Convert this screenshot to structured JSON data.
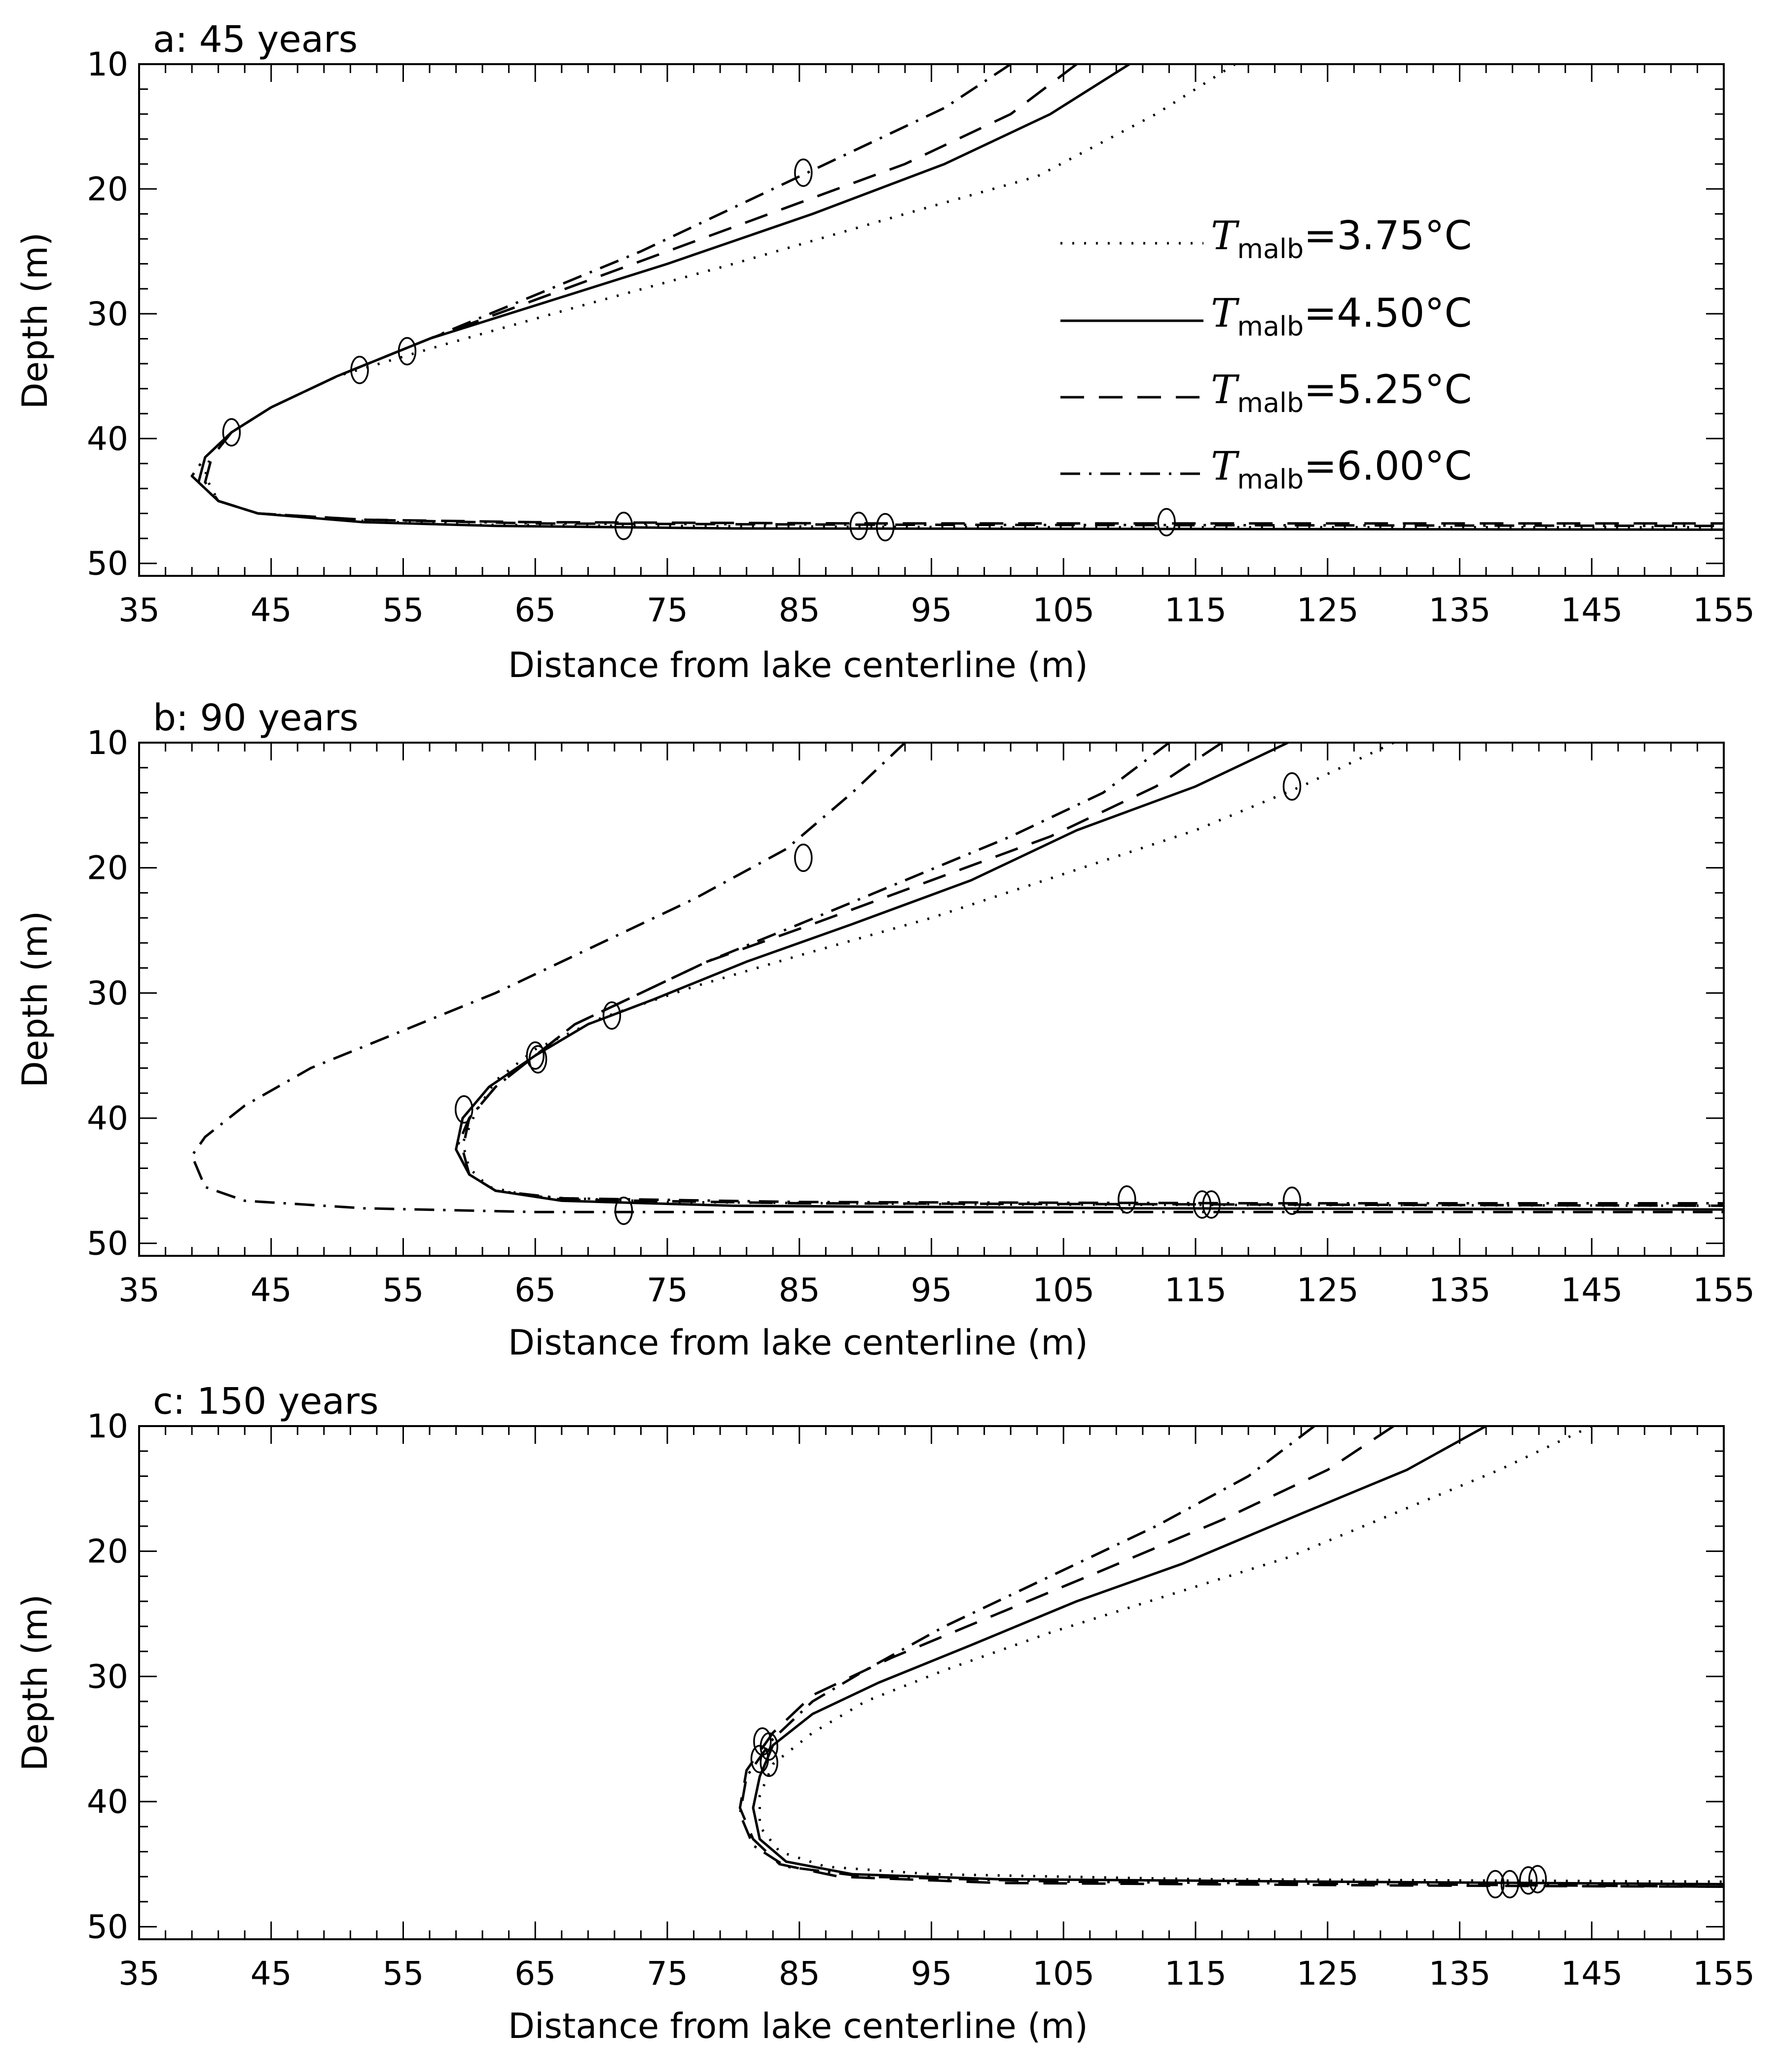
{
  "chart_data": [
    {
      "type": "line",
      "title": "a: 45 years",
      "xlabel": "Distance from lake centerline (m)",
      "ylabel": "Depth (m)",
      "xlim": [
        35,
        155
      ],
      "ylim": [
        51,
        10
      ],
      "xticks": [
        "35",
        "45",
        "55",
        "65",
        "75",
        "85",
        "95",
        "105",
        "115",
        "125",
        "135",
        "145",
        "155"
      ],
      "yticks": [
        "10",
        "20",
        "30",
        "40",
        "50"
      ],
      "legend": {
        "placement": "upper-right",
        "entries": [
          {
            "symbol": "T",
            "sub": "malb",
            "value": "=3.75°C"
          },
          {
            "symbol": "T",
            "sub": "malb",
            "value": "=4.50°C"
          },
          {
            "symbol": "T",
            "sub": "malb",
            "value": "=5.25°C"
          },
          {
            "symbol": "T",
            "sub": "malb",
            "value": "=6.00°C"
          }
        ]
      },
      "series": [
        {
          "style": "dotted",
          "points": [
            [
              118,
              10
            ],
            [
              112,
              14
            ],
            [
              103,
              19
            ],
            [
              93,
              22
            ],
            [
              80,
              26
            ],
            [
              68,
              29.5
            ],
            [
              58,
              32.5
            ],
            [
              50,
              35
            ],
            [
              45,
              37.5
            ],
            [
              42,
              39.5
            ],
            [
              40.5,
              41
            ],
            [
              40,
              43
            ],
            [
              41,
              45
            ],
            [
              44,
              46
            ],
            [
              52,
              46.6
            ],
            [
              60,
              46.9
            ],
            [
              75,
              47
            ],
            [
              100,
              47.1
            ],
            [
              155,
              47.1
            ]
          ]
        },
        {
          "style": "solid",
          "points": [
            [
              110,
              10
            ],
            [
              104,
              14
            ],
            [
              96,
              18
            ],
            [
              86,
              22
            ],
            [
              75,
              26
            ],
            [
              66,
              29
            ],
            [
              57,
              32
            ],
            [
              50,
              35
            ],
            [
              45,
              37.5
            ],
            [
              42,
              39.5
            ],
            [
              40,
              41.5
            ],
            [
              39.5,
              43.5
            ],
            [
              41,
              45
            ],
            [
              44,
              46
            ],
            [
              52,
              46.7
            ],
            [
              62,
              47
            ],
            [
              80,
              47.2
            ],
            [
              155,
              47.3
            ]
          ]
        },
        {
          "style": "dashed",
          "points": [
            [
              106,
              10
            ],
            [
              101,
              14
            ],
            [
              93,
              18
            ],
            [
              84,
              21.5
            ],
            [
              75,
              25
            ],
            [
              66,
              28.5
            ],
            [
              57,
              32
            ],
            [
              50,
              35
            ],
            [
              45,
              37.5
            ],
            [
              42,
              39.5
            ],
            [
              40.5,
              41.5
            ],
            [
              40,
              43.5
            ],
            [
              41,
              45
            ],
            [
              44,
              46
            ],
            [
              52,
              46.5
            ],
            [
              65,
              46.7
            ],
            [
              90,
              46.8
            ],
            [
              155,
              46.8
            ]
          ]
        },
        {
          "style": "dashdot",
          "points": [
            [
              101,
              10
            ],
            [
              96,
              13.5
            ],
            [
              89,
              17
            ],
            [
              81,
              21
            ],
            [
              73,
              25
            ],
            [
              65,
              28.5
            ],
            [
              57,
              32
            ],
            [
              50,
              35
            ],
            [
              45,
              37.5
            ],
            [
              42,
              39.5
            ],
            [
              40,
              41.5
            ],
            [
              39,
              43
            ],
            [
              41,
              45
            ],
            [
              44,
              46
            ],
            [
              52,
              46.5
            ],
            [
              65,
              46.8
            ],
            [
              90,
              46.9
            ],
            [
              155,
              47
            ]
          ]
        }
      ],
      "markers": [
        [
          85.3,
          18.7
        ],
        [
          51.7,
          34.5
        ],
        [
          55.3,
          33
        ],
        [
          42,
          39.5
        ],
        [
          71.7,
          47
        ],
        [
          89.5,
          47
        ],
        [
          91.5,
          47.1
        ],
        [
          112.8,
          46.7
        ]
      ]
    },
    {
      "type": "line",
      "title": "b: 90 years",
      "xlabel": "Distance from lake centerline (m)",
      "ylabel": "Depth (m)",
      "xlim": [
        35,
        155
      ],
      "ylim": [
        51,
        10
      ],
      "xticks": [
        "35",
        "45",
        "55",
        "65",
        "75",
        "85",
        "95",
        "105",
        "115",
        "125",
        "135",
        "145",
        "155"
      ],
      "yticks": [
        "10",
        "20",
        "30",
        "40",
        "50"
      ],
      "series": [
        {
          "style": "dotted",
          "points": [
            [
              130,
              10
            ],
            [
              123,
              13.5
            ],
            [
              115,
              17
            ],
            [
              105,
              20.5
            ],
            [
              95,
              24
            ],
            [
              85,
              27
            ],
            [
              77,
              29.5
            ],
            [
              70,
              32
            ],
            [
              65,
              34.5
            ],
            [
              62,
              37
            ],
            [
              60.5,
              39.5
            ],
            [
              59.5,
              42
            ],
            [
              60,
              44
            ],
            [
              61.5,
              45.5
            ],
            [
              65,
              46.3
            ],
            [
              75,
              46.7
            ],
            [
              100,
              46.9
            ],
            [
              155,
              47
            ]
          ]
        },
        {
          "style": "solid",
          "points": [
            [
              122,
              10
            ],
            [
              115,
              13.5
            ],
            [
              106,
              17
            ],
            [
              98,
              21
            ],
            [
              89,
              24.5
            ],
            [
              81,
              27.5
            ],
            [
              74,
              30.5
            ],
            [
              69,
              32.5
            ],
            [
              65,
              35
            ],
            [
              61.5,
              37.5
            ],
            [
              59.5,
              40
            ],
            [
              59,
              42.5
            ],
            [
              60,
              44.5
            ],
            [
              62,
              45.8
            ],
            [
              67,
              46.6
            ],
            [
              80,
              47
            ],
            [
              110,
              47.2
            ],
            [
              155,
              47.3
            ]
          ]
        },
        {
          "style": "dashed",
          "points": [
            [
              117,
              10
            ],
            [
              112,
              13.5
            ],
            [
              104,
              17.5
            ],
            [
              95,
              21
            ],
            [
              86,
              24.5
            ],
            [
              78,
              27.5
            ],
            [
              72,
              30.5
            ],
            [
              68,
              32.5
            ],
            [
              65,
              35
            ],
            [
              62,
              37.5
            ],
            [
              60,
              40
            ],
            [
              59.5,
              42.5
            ],
            [
              60,
              44.5
            ],
            [
              62,
              45.8
            ],
            [
              67,
              46.5
            ],
            [
              85,
              46.8
            ],
            [
              120,
              46.9
            ],
            [
              155,
              47
            ]
          ]
        },
        {
          "style": "dashdot",
          "points": [
            [
              113,
              10
            ],
            [
              108,
              14
            ],
            [
              101,
              17.5
            ],
            [
              93,
              21
            ],
            [
              85,
              24.5
            ],
            [
              78,
              27.5
            ],
            [
              72,
              30.5
            ],
            [
              68,
              32.5
            ],
            [
              65,
              35
            ],
            [
              62,
              37.5
            ],
            [
              60,
              40
            ],
            [
              59,
              42.5
            ],
            [
              60,
              44.5
            ],
            [
              62,
              45.8
            ],
            [
              67,
              46.4
            ],
            [
              85,
              46.7
            ],
            [
              120,
              46.8
            ],
            [
              155,
              46.8
            ]
          ]
        },
        {
          "style": "dashdot2",
          "points": [
            [
              93,
              10
            ],
            [
              89,
              14
            ],
            [
              84,
              18.5
            ],
            [
              77,
              22.5
            ],
            [
              70,
              26
            ],
            [
              62,
              30
            ],
            [
              55,
              33
            ],
            [
              48,
              36
            ],
            [
              43,
              39
            ],
            [
              40,
              41.5
            ],
            [
              39,
              43
            ],
            [
              40,
              45.5
            ],
            [
              43,
              46.6
            ],
            [
              52,
              47.2
            ],
            [
              65,
              47.5
            ],
            [
              90,
              47.5
            ],
            [
              155,
              47.5
            ]
          ]
        }
      ],
      "markers": [
        [
          85.3,
          19.2
        ],
        [
          122.3,
          13.5
        ],
        [
          70.8,
          31.8
        ],
        [
          65,
          35
        ],
        [
          65.2,
          35.3
        ],
        [
          59.6,
          39.3
        ],
        [
          71.7,
          47.4
        ],
        [
          109.8,
          46.5
        ],
        [
          115.5,
          46.9
        ],
        [
          116.2,
          46.9
        ],
        [
          122.3,
          46.6
        ]
      ]
    },
    {
      "type": "line",
      "title": "c: 150 years",
      "xlabel": "Distance from lake centerline (m)",
      "ylabel": "Depth (m)",
      "xlim": [
        35,
        155
      ],
      "ylim": [
        51,
        10
      ],
      "xticks": [
        "35",
        "45",
        "55",
        "65",
        "75",
        "85",
        "95",
        "105",
        "115",
        "125",
        "135",
        "145",
        "155"
      ],
      "yticks": [
        "10",
        "20",
        "30",
        "40",
        "50"
      ],
      "series": [
        {
          "style": "dotted",
          "points": [
            [
              145,
              10
            ],
            [
              138,
              13.5
            ],
            [
              130,
              17
            ],
            [
              122,
              20.5
            ],
            [
              113,
              23.5
            ],
            [
              104,
              26.5
            ],
            [
              96,
              29.5
            ],
            [
              90,
              32
            ],
            [
              86,
              34.5
            ],
            [
              83,
              37
            ],
            [
              82,
              39.5
            ],
            [
              82,
              42
            ],
            [
              83.5,
              44
            ],
            [
              87,
              45.2
            ],
            [
              95,
              45.8
            ],
            [
              115,
              46.2
            ],
            [
              155,
              46.4
            ]
          ]
        },
        {
          "style": "solid",
          "points": [
            [
              137,
              10
            ],
            [
              131,
              13.5
            ],
            [
              123,
              17
            ],
            [
              114,
              21
            ],
            [
              106,
              24
            ],
            [
              98,
              27.5
            ],
            [
              91,
              30.5
            ],
            [
              86,
              33
            ],
            [
              83,
              35.5
            ],
            [
              82,
              38
            ],
            [
              81.5,
              40.5
            ],
            [
              82,
              43
            ],
            [
              84,
              44.8
            ],
            [
              89,
              45.8
            ],
            [
              100,
              46.2
            ],
            [
              125,
              46.4
            ],
            [
              155,
              46.6
            ]
          ]
        },
        {
          "style": "dashed",
          "points": [
            [
              130,
              10
            ],
            [
              125,
              13.5
            ],
            [
              117,
              17.5
            ],
            [
              108,
              21.5
            ],
            [
              100,
              25
            ],
            [
              92,
              28.5
            ],
            [
              86,
              31.5
            ],
            [
              83,
              34.5
            ],
            [
              81,
              37.5
            ],
            [
              80.5,
              40.5
            ],
            [
              81.5,
              43
            ],
            [
              83.5,
              45
            ],
            [
              88,
              46
            ],
            [
              100,
              46.5
            ],
            [
              130,
              46.7
            ],
            [
              155,
              46.8
            ]
          ]
        },
        {
          "style": "dashdot",
          "points": [
            [
              124,
              10
            ],
            [
              119,
              14
            ],
            [
              112,
              18
            ],
            [
              104,
              22
            ],
            [
              96,
              26
            ],
            [
              90,
              29.5
            ],
            [
              86,
              32
            ],
            [
              83,
              35
            ],
            [
              81,
              38
            ],
            [
              80.5,
              41
            ],
            [
              81.5,
              43.5
            ],
            [
              84,
              45.2
            ],
            [
              90,
              46
            ],
            [
              105,
              46.4
            ],
            [
              130,
              46.6
            ],
            [
              155,
              46.8
            ]
          ]
        }
      ],
      "markers": [
        [
          82.2,
          35.2
        ],
        [
          82.7,
          35.6
        ],
        [
          82,
          36.6
        ],
        [
          82.7,
          36.9
        ],
        [
          137.7,
          46.6
        ],
        [
          138.8,
          46.6
        ],
        [
          140.2,
          46.3
        ],
        [
          140.9,
          46.2
        ]
      ]
    }
  ]
}
